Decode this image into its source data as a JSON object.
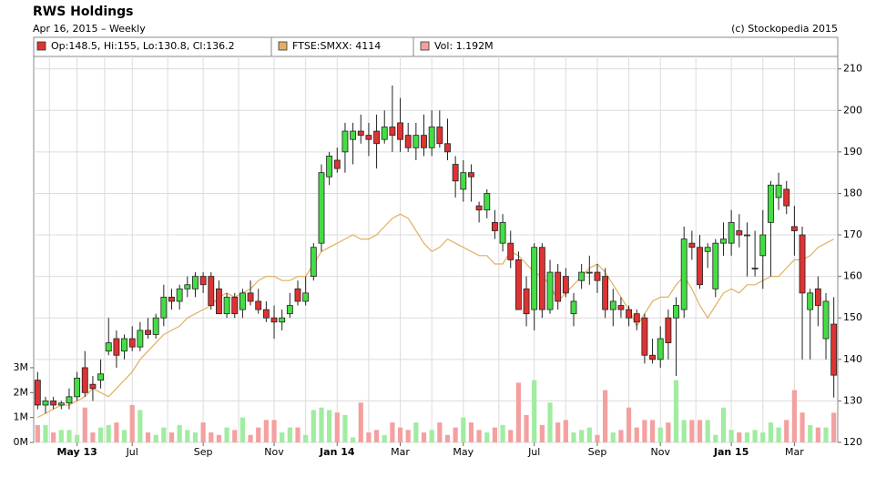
{
  "chart_data": {
    "type": "candlestick",
    "title": "RWS Holdings",
    "subtitle": "Apr 16, 2015 – Weekly",
    "credit": "(c) Stockopedia 2015",
    "categories": [
      null,
      null,
      null,
      null,
      null,
      "May 13",
      null,
      null,
      null,
      null,
      null,
      null,
      "Jul",
      null,
      null,
      null,
      null,
      null,
      null,
      null,
      null,
      "Sep",
      null,
      null,
      null,
      null,
      null,
      null,
      null,
      null,
      "Nov",
      null,
      null,
      null,
      null,
      null,
      null,
      null,
      "Jan 14",
      null,
      null,
      null,
      null,
      null,
      null,
      null,
      "Mar",
      null,
      null,
      null,
      null,
      null,
      null,
      null,
      "May",
      null,
      null,
      null,
      null,
      null,
      null,
      null,
      null,
      "Jul",
      null,
      null,
      null,
      null,
      null,
      null,
      null,
      "Sep",
      null,
      null,
      null,
      null,
      null,
      null,
      null,
      "Nov",
      null,
      null,
      null,
      null,
      null,
      null,
      null,
      null,
      "Jan 15",
      null,
      null,
      null,
      null,
      null,
      null,
      null,
      "Mar",
      null,
      null,
      null,
      null,
      null
    ],
    "series": [
      {
        "name": "Op:148.5, Hi:155, Lo:130.8, Cl:136.2",
        "type": "candlestick",
        "color": "#dd3333",
        "up_color": "#44dd44",
        "down_color": "#dd3333",
        "open": [
          135,
          129,
          130,
          129,
          129.5,
          131,
          138,
          134,
          135,
          142,
          145,
          142,
          145,
          143,
          147,
          146,
          150,
          155,
          154,
          157,
          157,
          160,
          160,
          157,
          151,
          155,
          152,
          156,
          154,
          152,
          150,
          149,
          151,
          157,
          154,
          160,
          168,
          184,
          188,
          190,
          193,
          195,
          194,
          195,
          193,
          196,
          197,
          194,
          191,
          194,
          191,
          196,
          192,
          187,
          181,
          185,
          177,
          176,
          173,
          168,
          168,
          164,
          157,
          152,
          167,
          152,
          161,
          160,
          151,
          159,
          161,
          161,
          160,
          152,
          153,
          152,
          151,
          150,
          141,
          140,
          150,
          150,
          152,
          168,
          167,
          166,
          157,
          168,
          168,
          171,
          170,
          162,
          165,
          173,
          179,
          181,
          172,
          170,
          152,
          157,
          145,
          148.5
        ],
        "high": [
          137,
          131,
          131,
          130,
          133,
          137,
          142,
          136,
          140,
          150,
          147,
          146,
          148,
          149,
          150,
          151,
          158,
          157,
          158,
          160,
          161,
          161,
          161,
          159,
          156,
          156,
          157,
          159,
          157,
          154,
          153,
          152,
          156,
          159,
          160,
          168,
          187,
          190,
          191,
          197,
          197,
          199,
          197,
          199,
          200,
          206,
          203,
          197,
          197,
          199,
          200,
          200,
          198,
          189,
          188,
          187,
          178,
          181,
          176,
          175,
          171,
          166,
          160,
          168,
          168,
          164,
          163,
          162,
          156,
          163,
          165,
          163,
          162,
          157,
          155,
          153,
          152,
          151,
          145,
          148,
          152,
          155,
          172,
          171,
          170,
          168,
          169,
          173,
          176,
          175,
          173,
          171,
          176,
          183,
          185,
          183,
          177,
          172,
          157,
          160,
          156,
          155
        ],
        "low": [
          128,
          127,
          128,
          128,
          128,
          130,
          131,
          130,
          133,
          141,
          138,
          140,
          142,
          142,
          145,
          145,
          148,
          152,
          152,
          155,
          155,
          156,
          152,
          151,
          150,
          150,
          150,
          153,
          151,
          149,
          145,
          147,
          150,
          153,
          153,
          159,
          166,
          182,
          185,
          185,
          187,
          192,
          189,
          186,
          192,
          190,
          190,
          190,
          188,
          189,
          189,
          191,
          188,
          179,
          178,
          178,
          173,
          174,
          169,
          166,
          162,
          152,
          148,
          147,
          150,
          151,
          152,
          155,
          148,
          157,
          158,
          156,
          150,
          148,
          150,
          148,
          147,
          139,
          139,
          138,
          140,
          136,
          150,
          164,
          157,
          162,
          155,
          165,
          165,
          167,
          160,
          160,
          157,
          160,
          176,
          175,
          165,
          140,
          140,
          148,
          140,
          130.8
        ],
        "close": [
          129,
          130,
          129,
          129.5,
          131,
          135.5,
          132,
          133,
          136.5,
          144,
          141,
          145,
          143,
          147,
          146,
          150,
          155,
          154,
          157,
          158,
          160,
          158,
          153,
          151,
          155,
          151,
          156,
          154,
          152,
          150,
          149,
          150,
          153,
          154,
          156,
          167,
          185,
          189,
          186,
          195,
          195,
          194,
          193,
          192,
          196,
          194,
          193,
          191,
          194,
          191,
          196,
          192,
          190,
          183,
          185,
          184,
          176,
          180,
          171,
          173,
          164,
          152,
          151,
          167,
          152,
          161,
          154,
          156,
          154,
          161,
          161,
          159,
          152,
          154,
          152,
          150,
          149,
          141,
          140,
          145,
          144,
          153,
          169,
          167,
          158,
          167,
          168,
          169,
          173,
          170,
          170,
          162,
          170,
          182,
          182,
          177,
          171,
          156,
          156,
          153,
          154,
          136.2
        ]
      },
      {
        "name": "FTSE:SMXX: 4114",
        "type": "line",
        "color": "#e0b060",
        "values": [
          126,
          127,
          128,
          129,
          129,
          130,
          131,
          133,
          132,
          131,
          133,
          135,
          137,
          140,
          142,
          144,
          146,
          147,
          148,
          150,
          151,
          152,
          153,
          155,
          156,
          155,
          156,
          157,
          159,
          160,
          160,
          159,
          159,
          160,
          160,
          163,
          166,
          167,
          168,
          169,
          170,
          169,
          169,
          170,
          172,
          174,
          175,
          174,
          171,
          168,
          166,
          167,
          169,
          168,
          167,
          166,
          165,
          165,
          163,
          163,
          166,
          165,
          163,
          161,
          160,
          158,
          154,
          156,
          158,
          160,
          162,
          163,
          161,
          158,
          155,
          152,
          148,
          151,
          154,
          155,
          155,
          158,
          160,
          157,
          153,
          150,
          153,
          156,
          157,
          156,
          158,
          158,
          159,
          160,
          160,
          162,
          164,
          164,
          165,
          167,
          168,
          169
        ]
      },
      {
        "name": "Vol: 1.192M",
        "type": "bar",
        "axis": "y2",
        "color": "#f4a0a0",
        "up_color": "#a0ec a0",
        "down_color": "#f4a0a0",
        "values": [
          0.7,
          0.7,
          0.4,
          0.5,
          0.5,
          0.3,
          1.4,
          0.4,
          0.6,
          0.7,
          0.8,
          0.5,
          1.5,
          1.3,
          0.4,
          0.3,
          0.6,
          0.4,
          0.7,
          0.5,
          0.4,
          0.8,
          0.4,
          0.3,
          0.6,
          0.5,
          1.0,
          0.3,
          0.6,
          0.9,
          0.9,
          0.4,
          0.6,
          0.6,
          0.3,
          1.3,
          1.4,
          1.3,
          1.2,
          1.1,
          0.2,
          1.6,
          0.4,
          0.5,
          0.3,
          0.8,
          0.6,
          0.5,
          0.8,
          0.4,
          0.5,
          0.8,
          0.3,
          0.6,
          1.0,
          0.8,
          0.5,
          0.4,
          0.6,
          0.7,
          0.5,
          2.4,
          1.1,
          2.5,
          0.7,
          1.6,
          0.8,
          0.9,
          0.4,
          0.5,
          0.6,
          0.3,
          2.1,
          0.4,
          0.5,
          1.4,
          0.6,
          0.9,
          0.9,
          0.6,
          0.8,
          2.5,
          0.9,
          0.9,
          0.9,
          0.9,
          0.3,
          1.4,
          0.5,
          0.4,
          0.4,
          0.5,
          0.4,
          0.8,
          0.6,
          0.9,
          2.1,
          1.2,
          0.7,
          0.6,
          0.6,
          1.192
        ]
      }
    ],
    "ylim": [
      120,
      213
    ],
    "yticks": [
      120,
      130,
      140,
      150,
      160,
      170,
      180,
      190,
      200,
      210
    ],
    "y2lim": [
      0,
      15.5
    ],
    "y2ticks": [
      {
        "value": 0,
        "label": "0M"
      },
      {
        "value": 1,
        "label": "1M"
      },
      {
        "value": 2,
        "label": "2M"
      },
      {
        "value": 3,
        "label": "3M"
      }
    ],
    "grid": true
  }
}
